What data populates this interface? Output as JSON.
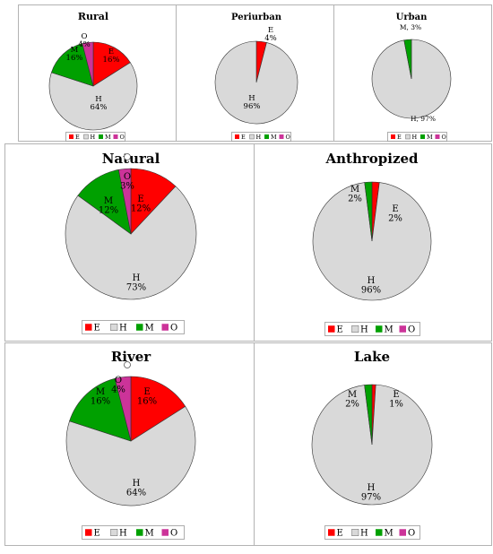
{
  "colors": {
    "E": "#ff0000",
    "H": "#d9d9d9",
    "M": "#00a000",
    "O": "#cc3399"
  },
  "legend_keys": [
    "E",
    "H",
    "M",
    "O"
  ],
  "chart_data": [
    {
      "type": "pie",
      "title": "Rural",
      "slices": [
        {
          "name": "E",
          "value": 16,
          "label": "E\n16%"
        },
        {
          "name": "H",
          "value": 64,
          "label": "H\n64%"
        },
        {
          "name": "M",
          "value": 16,
          "label": "M\n16%"
        },
        {
          "name": "O",
          "value": 4,
          "label": "O\n4%"
        }
      ],
      "legend": [
        "E",
        "H",
        "M",
        "O"
      ],
      "legend_position": "bottom"
    },
    {
      "type": "pie",
      "title": "Periurban",
      "slices": [
        {
          "name": "E",
          "value": 4,
          "label": "E\n4%"
        },
        {
          "name": "H",
          "value": 96,
          "label": "H\n96%"
        }
      ],
      "legend": [
        "E",
        "H",
        "M",
        "O"
      ],
      "legend_position": "bottom"
    },
    {
      "type": "pie",
      "title": "Urban",
      "slices": [
        {
          "name": "H",
          "value": 97,
          "label": "H, 97%"
        },
        {
          "name": "M",
          "value": 3,
          "label": "M, 3%"
        }
      ],
      "legend": [
        "E",
        "H",
        "M",
        "O"
      ],
      "legend_position": "bottom"
    },
    {
      "type": "pie",
      "title": "Natural",
      "slices": [
        {
          "name": "E",
          "value": 12,
          "label": "E\n12%"
        },
        {
          "name": "H",
          "value": 73,
          "label": "H\n73%"
        },
        {
          "name": "M",
          "value": 12,
          "label": "M\n12%"
        },
        {
          "name": "O",
          "value": 3,
          "label": "O\n3%"
        }
      ],
      "legend": [
        "E",
        "H",
        "M",
        "O"
      ],
      "legend_position": "bottom"
    },
    {
      "type": "pie",
      "title": "Anthropized",
      "slices": [
        {
          "name": "E",
          "value": 2,
          "label": "E\n2%"
        },
        {
          "name": "H",
          "value": 96,
          "label": "H\n96%"
        },
        {
          "name": "M",
          "value": 2,
          "label": "M\n2%"
        }
      ],
      "legend": [
        "E",
        "H",
        "M",
        "O"
      ],
      "legend_position": "bottom"
    },
    {
      "type": "pie",
      "title": "River",
      "slices": [
        {
          "name": "E",
          "value": 16,
          "label": "E\n16%"
        },
        {
          "name": "H",
          "value": 64,
          "label": "H\n64%"
        },
        {
          "name": "M",
          "value": 16,
          "label": "M\n16%"
        },
        {
          "name": "O",
          "value": 4,
          "label": "O\n4%"
        }
      ],
      "legend": [
        "E",
        "H",
        "M",
        "O"
      ],
      "legend_position": "bottom"
    },
    {
      "type": "pie",
      "title": "Lake",
      "slices": [
        {
          "name": "E",
          "value": 1,
          "label": "E\n1%"
        },
        {
          "name": "H",
          "value": 97,
          "label": "H\n97%"
        },
        {
          "name": "M",
          "value": 2,
          "label": "M\n2%"
        }
      ],
      "legend": [
        "E",
        "H",
        "M",
        "O"
      ],
      "legend_position": "bottom"
    }
  ]
}
